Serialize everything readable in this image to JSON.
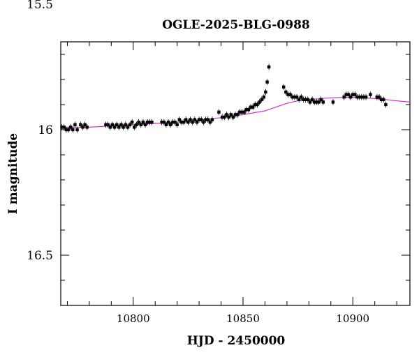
{
  "chart_data": {
    "type": "scatter",
    "title": "OGLE-2025-BLG-0988",
    "xlabel": "HJD - 2450000",
    "ylabel": "I magnitude",
    "xlim": [
      10767,
      10926
    ],
    "ylim": [
      16.7,
      15.65
    ],
    "y_inverted": true,
    "x_ticks": [
      10800,
      10850,
      10900
    ],
    "x_tick_labels": [
      "10800",
      "10850",
      "10900"
    ],
    "y_ticks": [
      15.5,
      16,
      16.5
    ],
    "y_tick_labels": [
      "15.5",
      "16",
      "16.5"
    ],
    "grid": false,
    "legend": "none",
    "colors": {
      "points": "#000000",
      "model": "#cc33cc"
    },
    "observations": {
      "name": "",
      "x": [
        10767.5,
        10768.5,
        10769.5,
        10770.5,
        10771.5,
        10772.5,
        10773.5,
        10774.5,
        10776,
        10777,
        10778,
        10779,
        10787.5,
        10788.5,
        10789.5,
        10790.5,
        10791.5,
        10792.5,
        10793.5,
        10794.5,
        10795.5,
        10796.5,
        10797.5,
        10798.5,
        10799.5,
        10800.5,
        10801.5,
        10802.5,
        10803.5,
        10804.5,
        10805.5,
        10806.5,
        10807.5,
        10808.5,
        10813,
        10814,
        10815,
        10816,
        10817,
        10818,
        10819,
        10820,
        10821,
        10822,
        10823,
        10824,
        10825,
        10826,
        10827,
        10828,
        10829,
        10830,
        10831,
        10832,
        10833,
        10834,
        10835,
        10836,
        10839,
        10840.5,
        10841.5,
        10842.5,
        10843.5,
        10844.5,
        10845.5,
        10846.5,
        10847.5,
        10848.5,
        10849.5,
        10850.5,
        10851.5,
        10852.5,
        10853.5,
        10854.5,
        10855.5,
        10856.5,
        10857.5,
        10858.5,
        10859.5,
        10860.3,
        10861,
        10861.8,
        10868.5,
        10869.5,
        10870.5,
        10871.5,
        10872.5,
        10873.5,
        10874.5,
        10875.5,
        10876.5,
        10877.5,
        10878.5,
        10879.5,
        10880.5,
        10881.5,
        10882.5,
        10883.5,
        10884.5,
        10885.5,
        10886.5,
        10891,
        10896,
        10897,
        10898,
        10899,
        10900,
        10901,
        10902,
        10903,
        10904,
        10905,
        10906,
        10908,
        10911,
        10912,
        10913,
        10914,
        10915
      ],
      "y": [
        15.99,
        15.99,
        16.0,
        16.0,
        15.99,
        16.0,
        15.98,
        16.0,
        15.98,
        15.99,
        15.98,
        15.99,
        15.98,
        15.98,
        15.99,
        15.98,
        15.99,
        15.98,
        15.99,
        15.98,
        15.99,
        15.98,
        15.99,
        15.98,
        15.97,
        15.99,
        15.98,
        15.97,
        15.98,
        15.97,
        15.98,
        15.97,
        15.97,
        15.97,
        15.97,
        15.97,
        15.98,
        15.97,
        15.98,
        15.97,
        15.97,
        15.98,
        15.96,
        15.97,
        15.97,
        15.96,
        15.97,
        15.96,
        15.97,
        15.96,
        15.97,
        15.96,
        15.96,
        15.97,
        15.96,
        15.96,
        15.97,
        15.96,
        15.93,
        15.95,
        15.95,
        15.94,
        15.95,
        15.94,
        15.95,
        15.94,
        15.94,
        15.93,
        15.93,
        15.93,
        15.92,
        15.92,
        15.91,
        15.91,
        15.9,
        15.9,
        15.89,
        15.88,
        15.87,
        15.85,
        15.81,
        15.75,
        15.83,
        15.85,
        15.86,
        15.86,
        15.87,
        15.87,
        15.87,
        15.88,
        15.87,
        15.88,
        15.88,
        15.88,
        15.89,
        15.88,
        15.89,
        15.89,
        15.89,
        15.88,
        15.89,
        15.89,
        15.87,
        15.86,
        15.86,
        15.87,
        15.86,
        15.86,
        15.87,
        15.87,
        15.87,
        15.87,
        15.87,
        15.86,
        15.87,
        15.87,
        15.88,
        15.88,
        15.9
      ],
      "err": 0.008
    },
    "model": {
      "name": "",
      "x": [
        10767,
        10780,
        10790,
        10800,
        10810,
        10820,
        10830,
        10840,
        10850,
        10860,
        10865,
        10870,
        10875,
        10880,
        10885,
        10890,
        10895,
        10900,
        10905,
        10910,
        10915,
        10920,
        10926
      ],
      "y": [
        15.99,
        15.99,
        15.985,
        15.98,
        15.975,
        15.97,
        15.962,
        15.952,
        15.94,
        15.925,
        15.91,
        15.895,
        15.885,
        15.88,
        15.876,
        15.873,
        15.872,
        15.872,
        15.873,
        15.876,
        15.88,
        15.885,
        15.89
      ]
    }
  }
}
